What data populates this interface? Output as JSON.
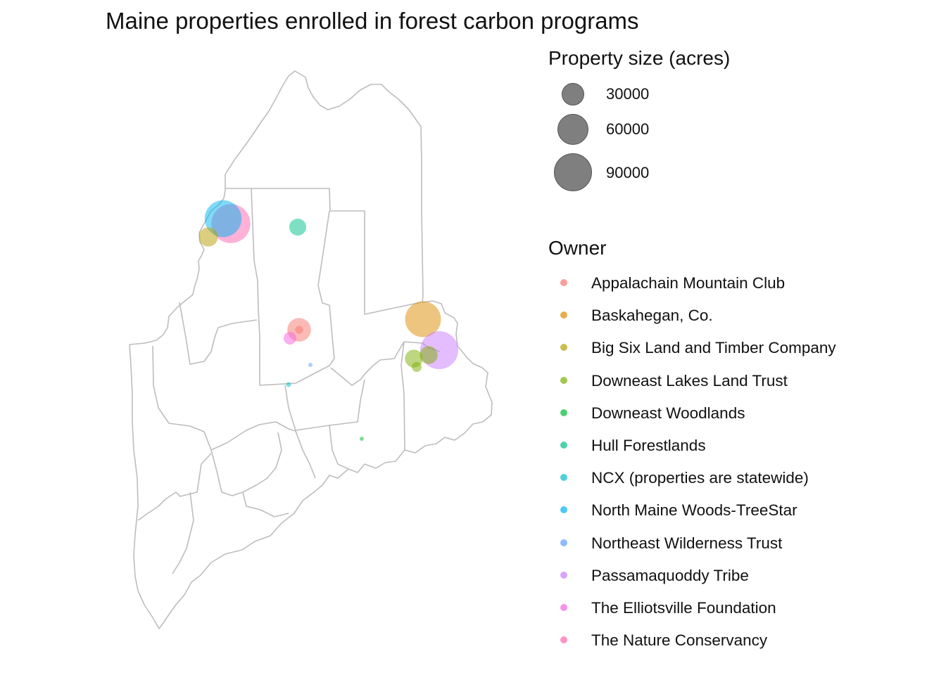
{
  "title": "Maine properties enrolled in forest carbon programs",
  "map": {
    "region": "Maine",
    "boundary_color": "#bdbdbd",
    "point_opacity": 0.5
  },
  "size_legend": {
    "title": "Property size (acres)",
    "items": [
      {
        "label": "30000",
        "value": 30000
      },
      {
        "label": "60000",
        "value": 60000
      },
      {
        "label": "90000",
        "value": 90000
      }
    ],
    "color": "#7f7f7f"
  },
  "owner_legend": {
    "title": "Owner",
    "items": [
      {
        "label": "Appalachain Mountain Club",
        "color": "#F8766D"
      },
      {
        "label": "Baskahegan, Co.",
        "color": "#DE8C00"
      },
      {
        "label": "Big Six Land and Timber Company",
        "color": "#B79F00"
      },
      {
        "label": "Downeast Lakes Land Trust",
        "color": "#7CAE00"
      },
      {
        "label": "Downeast Woodlands",
        "color": "#00BA38"
      },
      {
        "label": "Hull Forestlands",
        "color": "#00C08B"
      },
      {
        "label": "NCX (properties are statewide)",
        "color": "#00BFC4"
      },
      {
        "label": "North Maine Woods-TreeStar",
        "color": "#00B4F0"
      },
      {
        "label": "Northeast Wilderness Trust",
        "color": "#619CFF"
      },
      {
        "label": "Passamaquoddy Tribe",
        "color": "#C77CFF"
      },
      {
        "label": "The Elliotsville Foundation",
        "color": "#F564E3"
      },
      {
        "label": "The Nature Conservancy",
        "color": "#FF64B0"
      }
    ]
  },
  "chart_data": {
    "type": "scatter",
    "title": "Maine properties enrolled in forest carbon programs",
    "size_variable": "Property size (acres)",
    "color_variable": "Owner",
    "points": [
      {
        "owner": "The Nature Conservancy",
        "acres": 95000
      },
      {
        "owner": "North Maine Woods-TreeStar",
        "acres": 85000
      },
      {
        "owner": "Big Six Land and Timber Company",
        "acres": 23000
      },
      {
        "owner": "Hull Forestlands",
        "acres": 18000
      },
      {
        "owner": "Appalachain Mountain Club",
        "acres": 35000
      },
      {
        "owner": "Appalachain Mountain Club",
        "acres": 4000
      },
      {
        "owner": "The Elliotsville Foundation",
        "acres": 10000
      },
      {
        "owner": "Northeast Wilderness Trust",
        "acres": 1000
      },
      {
        "owner": "NCX (properties are statewide)",
        "acres": 1500
      },
      {
        "owner": "Baskahegan, Co.",
        "acres": 80000
      },
      {
        "owner": "Passamaquoddy Tribe",
        "acres": 90000
      },
      {
        "owner": "Downeast Lakes Land Trust",
        "acres": 20000
      },
      {
        "owner": "Downeast Lakes Land Trust",
        "acres": 6000
      },
      {
        "owner": "Downeast Lakes Land Trust",
        "acres": 20000
      },
      {
        "owner": "Downeast Woodlands",
        "acres": 1000
      }
    ]
  }
}
